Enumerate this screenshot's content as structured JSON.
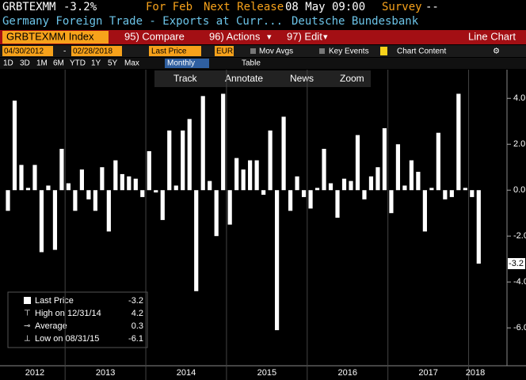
{
  "header": {
    "ticker": "GRBTEXMM",
    "change": "-3.2%",
    "period_label": "For Feb",
    "release_label": "Next Release",
    "release_value": "08 May 09:00",
    "survey_label": "Survey",
    "survey_value": "--",
    "description": "Germany Foreign Trade - Exports at Curr...",
    "source": "Deutsche Bundesbank"
  },
  "command_bar": {
    "security": "GRBTEXMM Index",
    "buttons": [
      "95) Compare",
      "96) Actions",
      "97) Edit"
    ],
    "view": "Line Chart"
  },
  "settings_bar": {
    "start_date": "04/30/2012",
    "separator": "-",
    "end_date": "02/28/2018",
    "field": "Last Price",
    "currency": "EUR",
    "mov_avgs": "Mov Avgs",
    "key_events": "Key Events",
    "chart_content": "Chart Content"
  },
  "range_bar": {
    "ranges": [
      "1D",
      "3D",
      "1M",
      "6M",
      "YTD",
      "1Y",
      "5Y",
      "Max"
    ],
    "frequency": "Monthly",
    "table": "Table"
  },
  "chart_tools": [
    "Track",
    "Annotate",
    "News",
    "Zoom"
  ],
  "chart_data": {
    "type": "bar",
    "color": "#ffffff",
    "values": [
      -0.9,
      3.9,
      1.1,
      0.1,
      1.1,
      -2.7,
      0.2,
      -2.6,
      1.8,
      0.3,
      -0.9,
      0.9,
      -0.4,
      -0.9,
      1.0,
      -1.8,
      1.3,
      0.7,
      0.6,
      0.5,
      -0.3,
      1.7,
      -0.1,
      -1.3,
      2.6,
      0.2,
      2.6,
      3.1,
      -4.4,
      4.1,
      0.4,
      -2.0,
      4.2,
      -1.5,
      1.4,
      0.9,
      1.3,
      1.3,
      -0.2,
      2.6,
      -6.1,
      3.2,
      -0.9,
      0.6,
      -0.3,
      -0.8,
      0.1,
      1.8,
      0.3,
      -1.2,
      0.5,
      0.4,
      2.4,
      -0.4,
      0.6,
      1.0,
      2.7,
      -1.0,
      2.0,
      0.2,
      1.3,
      0.8,
      -1.8,
      0.1,
      2.5,
      -0.4,
      -0.3,
      4.2,
      0.1,
      -0.3,
      -3.2
    ],
    "ylim": [
      -7.65,
      5.25
    ],
    "yticks": [
      {
        "value": 4,
        "label": "4.0"
      },
      {
        "value": 2,
        "label": "2.0"
      },
      {
        "value": 0,
        "label": "0.0"
      },
      {
        "value": -2,
        "label": "-2.0"
      },
      {
        "value": -4,
        "label": "-4.0"
      },
      {
        "value": -6,
        "label": "-6.0"
      }
    ],
    "years": [
      "2012",
      "2013",
      "2014",
      "2015",
      "2016",
      "2017",
      "2018"
    ],
    "last_label": "-3.2",
    "legend": [
      {
        "label": "Last Price",
        "value": "-3.2"
      },
      {
        "label": "High on 12/31/14",
        "value": "4.2"
      },
      {
        "label": "Average",
        "value": "0.3"
      },
      {
        "label": "Low on 08/31/15",
        "value": "-6.1"
      }
    ]
  }
}
